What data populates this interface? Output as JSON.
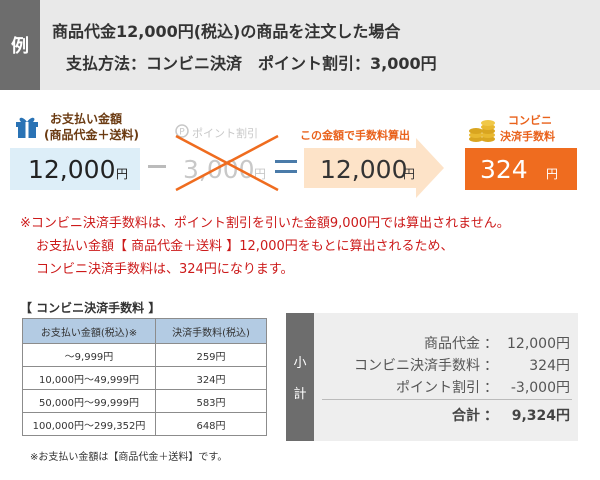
{
  "header": {
    "tag": "例",
    "line1": "商品代金12,000円(税込)の商品を注文した場合",
    "line2": "支払方法：コンビニ決済　ポイント割引：3,000円"
  },
  "flow": {
    "payment": {
      "label_line1": "お支払い金額",
      "label_line2": "(商品代金＋送料)",
      "amount": "12,000",
      "unit": "円"
    },
    "point": {
      "label": "ポイント割引",
      "amount": "3,000",
      "unit": "円"
    },
    "base": {
      "label": "この金額で手数料算出",
      "amount": "12,000",
      "unit": "円"
    },
    "fee": {
      "label_line1": "コンビニ",
      "label_line2": "決済手数料",
      "amount": "324",
      "unit": "円"
    },
    "icons": {
      "payment": "gift-icon",
      "point": "point-coin-icon",
      "fee": "coins-icon"
    }
  },
  "notes": [
    "※コンビニ決済手数料は、ポイント割引を引いた金額9,000円では算出されません。",
    "お支払い金額【 商品代金＋送料 】12,000円をもとに算出されるため、",
    "コンビニ決済手数料は、324円になります。"
  ],
  "fee_table": {
    "title": "【 コンビニ決済手数料 】",
    "headers": [
      "お支払い金額(税込)※",
      "決済手数料(税込)"
    ],
    "rows": [
      [
        "～9,999円",
        "259円"
      ],
      [
        "10,000円～49,999円",
        "324円"
      ],
      [
        "50,000円～99,999円",
        "583円"
      ],
      [
        "100,000円～299,352円",
        "648円"
      ]
    ],
    "note": "※お支払い金額は【商品代金＋送料】です。"
  },
  "subtotal": {
    "tab_chars": [
      "小",
      "計"
    ],
    "rows": [
      {
        "label": "商品代金",
        "value": "12,000円"
      },
      {
        "label": "コンビニ決済手数料",
        "value": "324円"
      },
      {
        "label": "ポイント割引",
        "value": "-3,000円"
      }
    ],
    "total": {
      "label": "合計",
      "value": "9,324円"
    },
    "colon": "："
  },
  "colors": {
    "accent_orange": "#ef6c1f",
    "label_brown": "#6b3b12",
    "note_red": "#cc1a1a",
    "payment_box": "#ddeef8",
    "table_header": "#b3cbe3",
    "header_bg": "#e9e9e9",
    "tag_bg": "#6d6d6d"
  }
}
